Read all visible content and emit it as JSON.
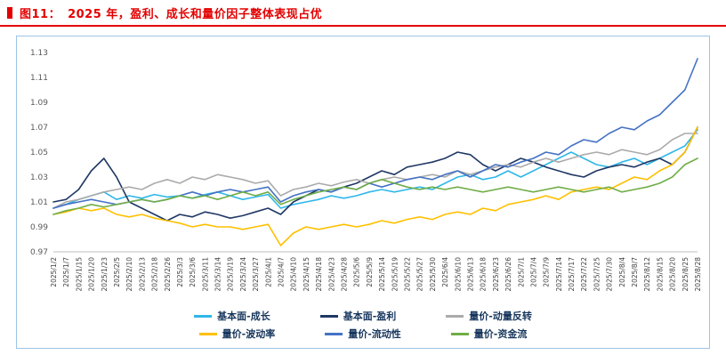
{
  "header": {
    "figure_label": "图11：",
    "title": "2025 年，盈利、成长和量价因子整体表现占优",
    "accent_color": "#E30000"
  },
  "chart_data": {
    "type": "line",
    "title": "2025 年，盈利、成长和量价因子整体表现占优",
    "xlabel": "",
    "ylabel": "",
    "ylim": [
      0.97,
      1.13
    ],
    "yticks": [
      0.97,
      0.99,
      1.01,
      1.03,
      1.05,
      1.07,
      1.09,
      1.11,
      1.13
    ],
    "grid": false,
    "legend_position": "bottom",
    "x": [
      "2025/1/2",
      "2025/1/7",
      "2025/1/15",
      "2025/1/20",
      "2025/1/23",
      "2025/2/5",
      "2025/2/10",
      "2025/2/13",
      "2025/2/18",
      "2025/2/26",
      "2025/3/3",
      "2025/3/6",
      "2025/3/11",
      "2025/3/14",
      "2025/3/19",
      "2025/3/24",
      "2025/3/27",
      "2025/4/1",
      "2025/4/7",
      "2025/4/10",
      "2025/4/15",
      "2025/4/18",
      "2025/4/23",
      "2025/4/28",
      "2025/5/6",
      "2025/5/9",
      "2025/5/14",
      "2025/5/19",
      "2025/5/22",
      "2025/5/27",
      "2025/5/30",
      "2025/6/4",
      "2025/6/10",
      "2025/6/13",
      "2025/6/18",
      "2025/6/23",
      "2025/6/26",
      "2025/7/1",
      "2025/7/4",
      "2025/7/9",
      "2025/7/14",
      "2025/7/17",
      "2025/7/22",
      "2025/7/25",
      "2025/7/30",
      "2025/8/4",
      "2025/8/7",
      "2025/8/12",
      "2025/8/15",
      "2025/8/20",
      "2025/8/25",
      "2025/8/28"
    ],
    "series": [
      {
        "name": "基本面-成长",
        "color": "#2FB7E9",
        "values": [
          1.005,
          1.008,
          1.012,
          1.015,
          1.018,
          1.012,
          1.015,
          1.013,
          1.016,
          1.014,
          1.015,
          1.013,
          1.016,
          1.018,
          1.015,
          1.012,
          1.014,
          1.016,
          1.005,
          1.008,
          1.01,
          1.012,
          1.015,
          1.013,
          1.015,
          1.018,
          1.02,
          1.018,
          1.02,
          1.022,
          1.02,
          1.025,
          1.03,
          1.032,
          1.028,
          1.03,
          1.035,
          1.03,
          1.035,
          1.04,
          1.045,
          1.05,
          1.045,
          1.04,
          1.038,
          1.042,
          1.045,
          1.04,
          1.045,
          1.05,
          1.055,
          1.068
        ]
      },
      {
        "name": "基本面-盈利",
        "color": "#1F3864",
        "values": [
          1.01,
          1.012,
          1.02,
          1.035,
          1.045,
          1.03,
          1.01,
          1.005,
          1.0,
          0.995,
          1.0,
          0.998,
          1.002,
          1.0,
          0.997,
          0.999,
          1.002,
          1.005,
          1.0,
          1.01,
          1.015,
          1.02,
          1.018,
          1.022,
          1.025,
          1.03,
          1.035,
          1.032,
          1.038,
          1.04,
          1.042,
          1.045,
          1.05,
          1.048,
          1.04,
          1.035,
          1.04,
          1.045,
          1.042,
          1.038,
          1.035,
          1.032,
          1.03,
          1.035,
          1.038,
          1.04,
          1.038,
          1.042,
          1.045,
          1.04,
          1.05,
          1.07
        ]
      },
      {
        "name": "量价-动量反转",
        "color": "#ABABAB",
        "values": [
          1.005,
          1.01,
          1.012,
          1.015,
          1.018,
          1.02,
          1.022,
          1.02,
          1.025,
          1.028,
          1.025,
          1.03,
          1.028,
          1.032,
          1.03,
          1.028,
          1.025,
          1.027,
          1.015,
          1.02,
          1.022,
          1.025,
          1.023,
          1.026,
          1.028,
          1.025,
          1.028,
          1.03,
          1.028,
          1.03,
          1.032,
          1.03,
          1.035,
          1.032,
          1.035,
          1.038,
          1.04,
          1.038,
          1.042,
          1.045,
          1.042,
          1.045,
          1.048,
          1.05,
          1.048,
          1.052,
          1.05,
          1.048,
          1.052,
          1.06,
          1.065,
          1.065
        ]
      },
      {
        "name": "量价-波动率",
        "color": "#FFC000",
        "values": [
          1.0,
          1.002,
          1.005,
          1.003,
          1.005,
          1.0,
          0.998,
          1.0,
          0.997,
          0.995,
          0.993,
          0.99,
          0.992,
          0.99,
          0.99,
          0.988,
          0.99,
          0.992,
          0.975,
          0.985,
          0.99,
          0.988,
          0.99,
          0.992,
          0.99,
          0.992,
          0.995,
          0.993,
          0.996,
          0.998,
          0.996,
          1.0,
          1.002,
          1.0,
          1.005,
          1.003,
          1.008,
          1.01,
          1.012,
          1.015,
          1.012,
          1.018,
          1.02,
          1.022,
          1.02,
          1.025,
          1.03,
          1.028,
          1.035,
          1.04,
          1.05,
          1.07
        ]
      },
      {
        "name": "量价-流动性",
        "color": "#4472C4",
        "values": [
          1.005,
          1.008,
          1.01,
          1.012,
          1.01,
          1.008,
          1.01,
          1.012,
          1.01,
          1.012,
          1.015,
          1.018,
          1.015,
          1.018,
          1.02,
          1.018,
          1.02,
          1.022,
          1.01,
          1.015,
          1.018,
          1.02,
          1.018,
          1.022,
          1.02,
          1.025,
          1.022,
          1.025,
          1.028,
          1.03,
          1.028,
          1.032,
          1.035,
          1.03,
          1.035,
          1.04,
          1.038,
          1.042,
          1.045,
          1.05,
          1.048,
          1.055,
          1.06,
          1.058,
          1.065,
          1.07,
          1.068,
          1.075,
          1.08,
          1.09,
          1.1,
          1.125
        ]
      },
      {
        "name": "量价-资金流",
        "color": "#70AD47",
        "values": [
          1.0,
          1.003,
          1.005,
          1.008,
          1.006,
          1.008,
          1.01,
          1.012,
          1.01,
          1.012,
          1.015,
          1.013,
          1.015,
          1.012,
          1.015,
          1.018,
          1.015,
          1.018,
          1.008,
          1.012,
          1.015,
          1.018,
          1.02,
          1.022,
          1.02,
          1.025,
          1.028,
          1.025,
          1.022,
          1.02,
          1.022,
          1.02,
          1.022,
          1.02,
          1.018,
          1.02,
          1.022,
          1.02,
          1.018,
          1.02,
          1.022,
          1.02,
          1.018,
          1.02,
          1.022,
          1.018,
          1.02,
          1.022,
          1.025,
          1.03,
          1.04,
          1.045
        ]
      }
    ]
  }
}
